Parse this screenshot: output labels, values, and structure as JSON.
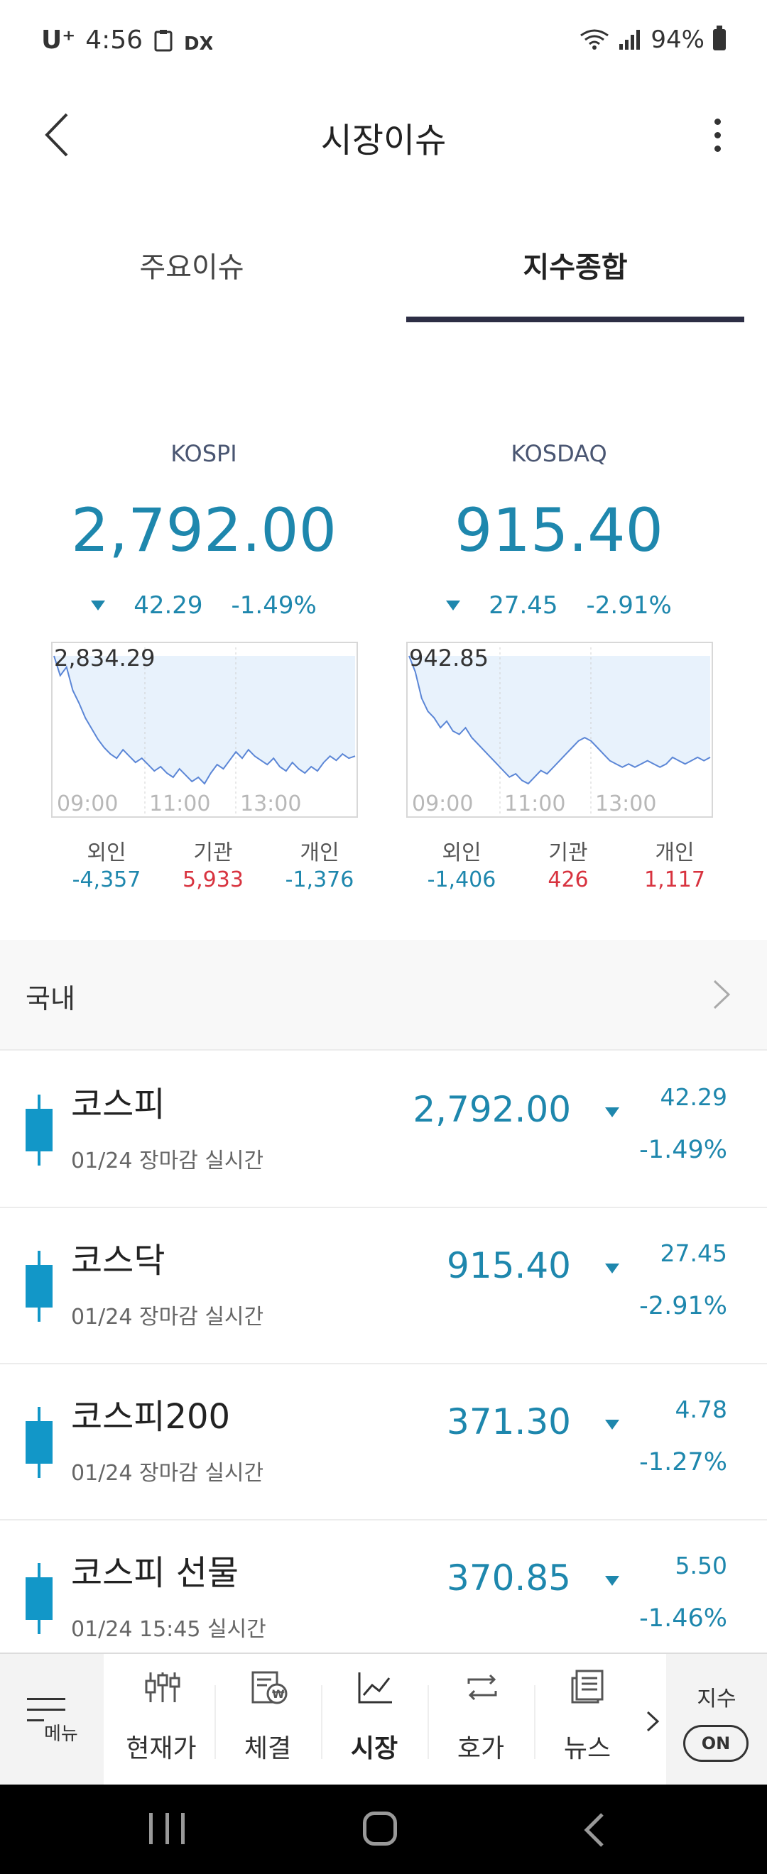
{
  "status_bar": {
    "carrier": "U⁺",
    "time": "4:56",
    "battery": "94%"
  },
  "header": {
    "title": "시장이슈"
  },
  "tabs": [
    {
      "label": "주요이슈",
      "active": false
    },
    {
      "label": "지수종합",
      "active": true
    }
  ],
  "indices": [
    {
      "name": "KOSPI",
      "value": "2,792.00",
      "change": "42.29",
      "change_pct": "-1.49%",
      "direction": "down",
      "chart": {
        "high_label": "2,834.29",
        "time_labels": [
          "09:00",
          "11:00",
          "13:00"
        ],
        "series": [
          2834.29,
          2825,
          2829,
          2818,
          2812,
          2805,
          2800,
          2795,
          2791,
          2788,
          2786,
          2790,
          2787,
          2784,
          2786,
          2783,
          2780,
          2782,
          2779,
          2777,
          2781,
          2778,
          2775,
          2777,
          2774,
          2779,
          2783,
          2781,
          2785,
          2789,
          2786,
          2790,
          2787,
          2785,
          2783,
          2786,
          2782,
          2780,
          2784,
          2781,
          2779,
          2782,
          2780,
          2784,
          2787,
          2785,
          2788,
          2786,
          2787
        ]
      },
      "investors": [
        {
          "label": "외인",
          "value": "-4,357",
          "sign": "neg"
        },
        {
          "label": "기관",
          "value": "5,933",
          "sign": "pos"
        },
        {
          "label": "개인",
          "value": "-1,376",
          "sign": "neg"
        }
      ]
    },
    {
      "name": "KOSDAQ",
      "value": "915.40",
      "change": "27.45",
      "change_pct": "-2.91%",
      "direction": "down",
      "chart": {
        "high_label": "942.85",
        "time_labels": [
          "09:00",
          "11:00",
          "13:00"
        ],
        "series": [
          942.85,
          938,
          930,
          926,
          924,
          921,
          923,
          920,
          919,
          921,
          918,
          916,
          914,
          912,
          910,
          908,
          906,
          907,
          905,
          904,
          906,
          908,
          907,
          909,
          911,
          913,
          915,
          917,
          918,
          917,
          915,
          913,
          911,
          910,
          909,
          910,
          909,
          910,
          911,
          910,
          909,
          910,
          912,
          911,
          910,
          911,
          912,
          911,
          912
        ]
      },
      "investors": [
        {
          "label": "외인",
          "value": "-1,406",
          "sign": "neg"
        },
        {
          "label": "기관",
          "value": "426",
          "sign": "pos"
        },
        {
          "label": "개인",
          "value": "1,117",
          "sign": "pos"
        }
      ]
    }
  ],
  "domestic": {
    "title": "국내",
    "rows": [
      {
        "name": "코스피",
        "sub": "01/24 장마감 실시간",
        "price": "2,792.00",
        "change": "42.29",
        "pct": "-1.49%"
      },
      {
        "name": "코스닥",
        "sub": "01/24 장마감 실시간",
        "price": "915.40",
        "change": "27.45",
        "pct": "-2.91%"
      },
      {
        "name": "코스피200",
        "sub": "01/24 장마감 실시간",
        "price": "371.30",
        "change": "4.78",
        "pct": "-1.27%"
      },
      {
        "name": "코스피 선물",
        "sub": "01/24 15:45 실시간",
        "price": "370.85",
        "change": "5.50",
        "pct": "-1.46%"
      }
    ]
  },
  "bottom_nav": {
    "menu": "메뉴",
    "items": [
      {
        "label": "현재가",
        "icon": "sliders-icon",
        "active": false
      },
      {
        "label": "체결",
        "icon": "won-document-icon",
        "active": false
      },
      {
        "label": "시장",
        "icon": "line-chart-icon",
        "active": true
      },
      {
        "label": "호가",
        "icon": "exchange-arrows-icon",
        "active": false
      },
      {
        "label": "뉴스",
        "icon": "newspaper-icon",
        "active": false
      }
    ],
    "index_label": "지수",
    "toggle": "ON"
  },
  "colors": {
    "down": "#1e87ad",
    "up": "#d8333f",
    "tab_underline": "#2d2e45",
    "candle": "#1297c8"
  }
}
